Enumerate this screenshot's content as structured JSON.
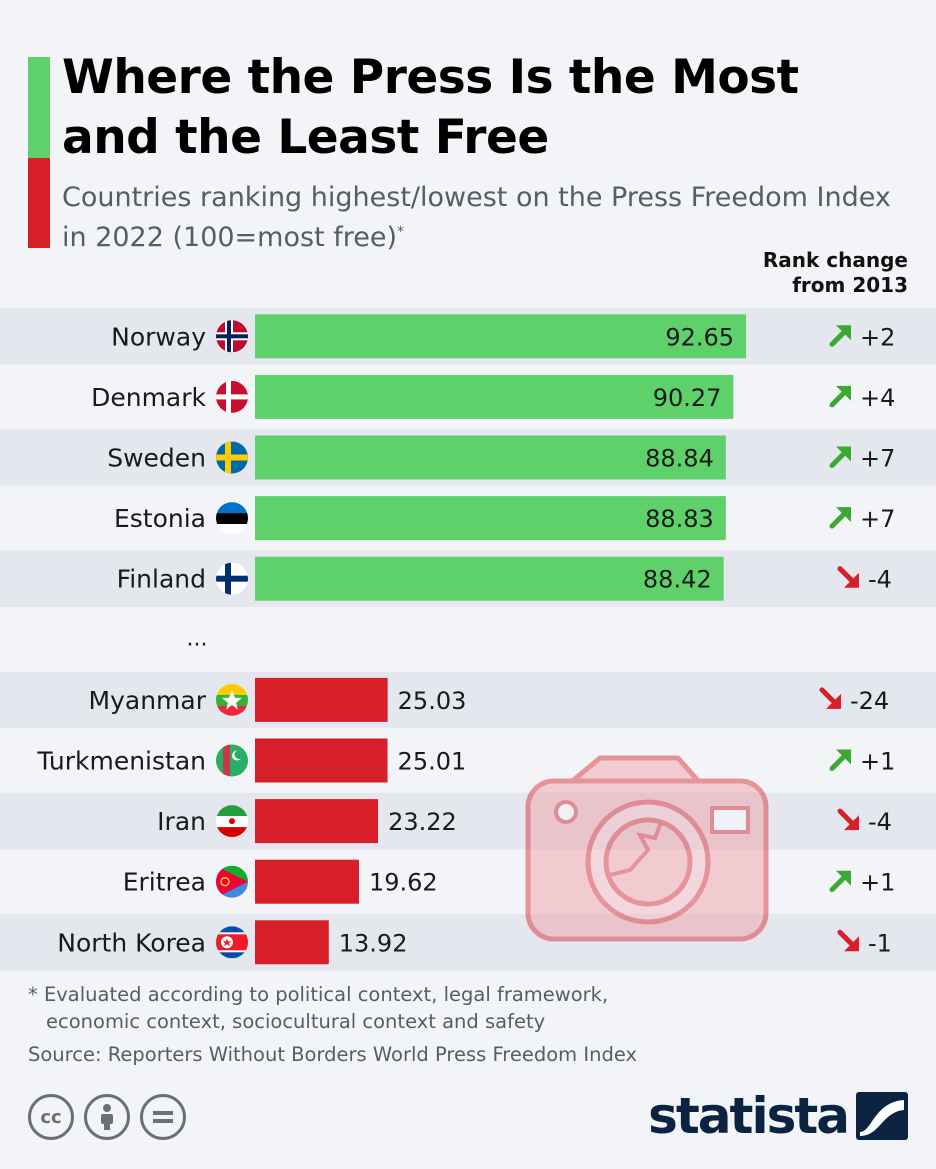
{
  "header": {
    "title": "Where the Press Is the Most and the Least Free",
    "subtitle": "Countries ranking highest/lowest on the Press Freedom Index in 2022 (100=most free)",
    "subtitle_mark": "*",
    "rank_header_line1": "Rank change",
    "rank_header_line2": "from 2013"
  },
  "chart_data": {
    "type": "bar",
    "orientation": "horizontal",
    "categories": [
      "Norway",
      "Denmark",
      "Sweden",
      "Estonia",
      "Finland",
      "...",
      "Myanmar",
      "Turkmenistan",
      "Iran",
      "Eritrea",
      "North Korea"
    ],
    "values": [
      92.65,
      90.27,
      88.84,
      88.83,
      88.42,
      null,
      25.03,
      25.01,
      23.22,
      19.62,
      13.92
    ],
    "value_labels": [
      "92.65",
      "90.27",
      "88.84",
      "88.83",
      "88.42",
      "",
      "25.03",
      "25.01",
      "23.22",
      "19.62",
      "13.92"
    ],
    "rank_change": [
      "+2",
      "+4",
      "+7",
      "+7",
      "-4",
      "",
      "-24",
      "+1",
      "-4",
      "+1",
      "-1"
    ],
    "rank_direction": [
      "up",
      "up",
      "up",
      "up",
      "down",
      "",
      "down",
      "up",
      "down",
      "up",
      "down"
    ],
    "xlim": [
      0,
      100
    ],
    "colors": {
      "most_free": "#5ed16b",
      "least_free": "#d71f2a",
      "up_arrow": "#3aaa35",
      "down_arrow": "#d71f2a"
    },
    "flags": [
      "norway-flag-icon",
      "denmark-flag-icon",
      "sweden-flag-icon",
      "estonia-flag-icon",
      "finland-flag-icon",
      "",
      "myanmar-flag-icon",
      "turkmenistan-flag-icon",
      "iran-flag-icon",
      "eritrea-flag-icon",
      "north-korea-flag-icon"
    ]
  },
  "footer": {
    "note_line1": "* Evaluated according to political context, legal framework,",
    "note_line2": "economic context, sociocultural context and safety",
    "source": "Source: Reporters Without Borders World Press Freedom Index",
    "logo": "statista",
    "cc_icons": [
      "cc-icon",
      "attribution-icon",
      "no-derivatives-icon"
    ]
  },
  "decoration": {
    "icon": "camera-icon"
  }
}
